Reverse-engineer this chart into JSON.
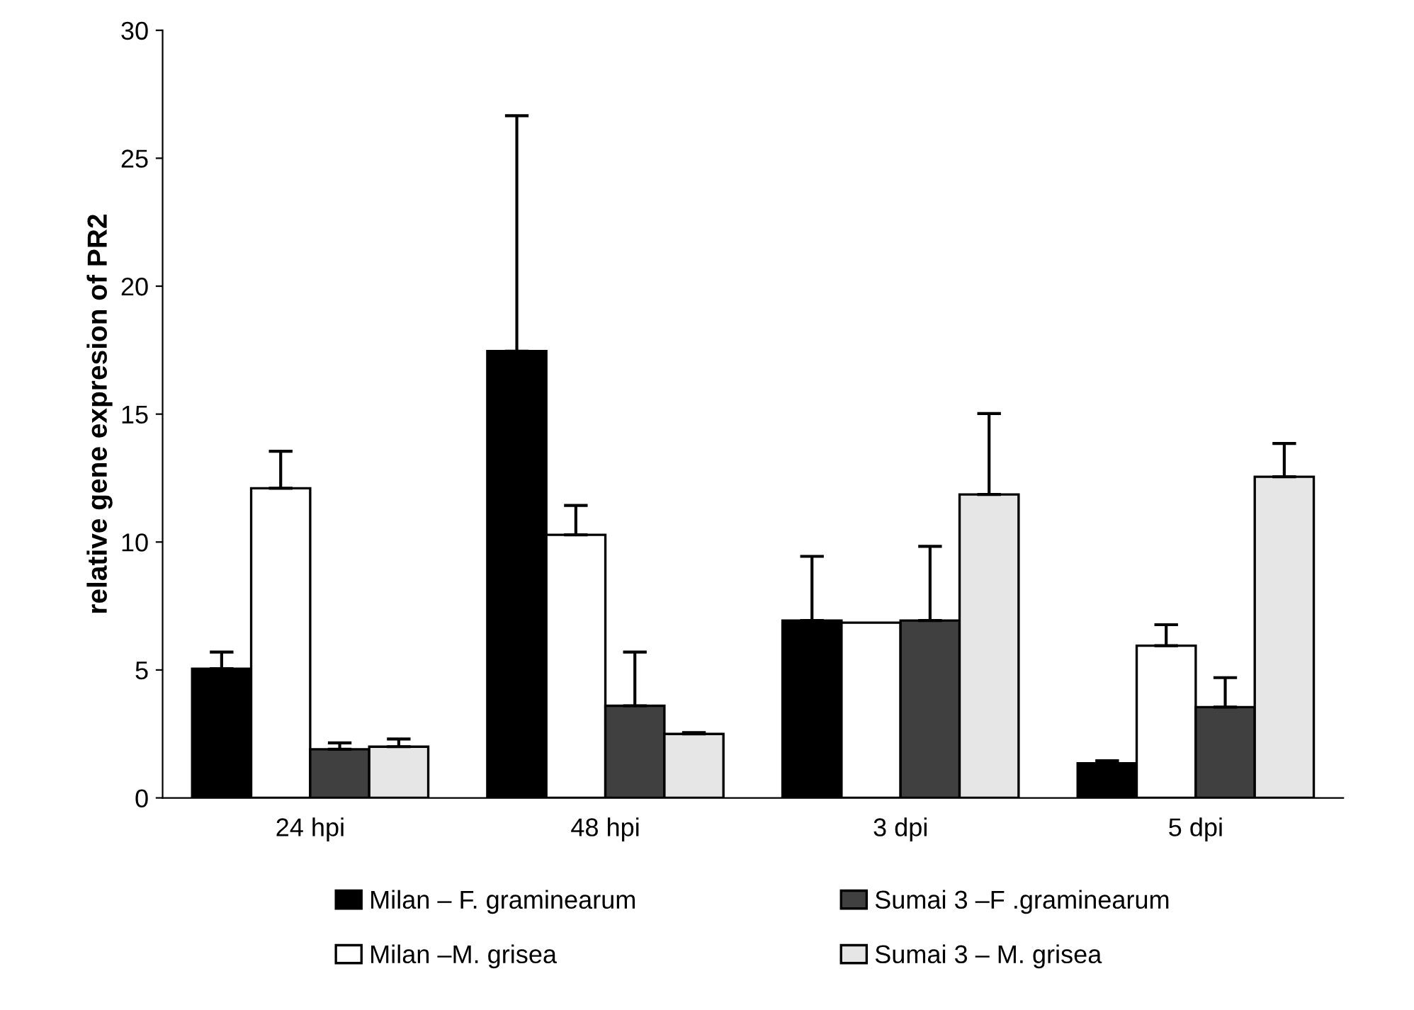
{
  "chart_data": {
    "type": "bar",
    "ylabel": "relative gene expresion of PR2",
    "categories": [
      "24 hpi",
      "48 hpi",
      "3 dpi",
      "5 dpi"
    ],
    "series": [
      {
        "name": "Milan – F. graminearum",
        "color": "#000000",
        "values": [
          5.05,
          17.46,
          6.93,
          1.35
        ],
        "errors": [
          [
            5.05,
            5.7
          ],
          [
            17.46,
            26.66
          ],
          [
            6.93,
            9.44
          ],
          [
            1.35,
            1.45
          ]
        ]
      },
      {
        "name": "Milan –M. grisea",
        "color": "#ffffff",
        "values": [
          12.1,
          10.28,
          6.85,
          5.95
        ],
        "errors": [
          [
            12.1,
            13.55
          ],
          [
            10.28,
            11.43
          ],
          null,
          [
            5.95,
            6.77
          ]
        ]
      },
      {
        "name": "Sumai 3 –F .graminearum",
        "color": "#404040",
        "values": [
          1.9,
          3.6,
          6.93,
          3.55
        ],
        "errors": [
          [
            1.9,
            2.15
          ],
          [
            3.6,
            5.7
          ],
          [
            6.93,
            9.83
          ],
          [
            3.55,
            4.7
          ]
        ]
      },
      {
        "name": "Sumai 3 – M. grisea",
        "color": "#e6e6e6",
        "values": [
          2.0,
          2.5,
          11.86,
          12.55
        ],
        "errors": [
          [
            2.0,
            2.3
          ],
          [
            2.5,
            2.55
          ],
          [
            11.86,
            15.02
          ],
          [
            12.55,
            13.85
          ]
        ]
      }
    ],
    "ylim": [
      0,
      30
    ],
    "yticks": [
      0,
      5,
      10,
      15,
      20,
      25,
      30
    ],
    "grid": false,
    "legend": "bottom"
  }
}
